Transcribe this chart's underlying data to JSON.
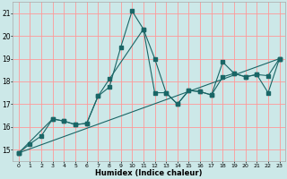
{
  "xlabel": "Humidex (Indice chaleur)",
  "ylabel": "",
  "bg_color": "#cce8e8",
  "grid_color": "#ff9999",
  "line_color": "#1a6666",
  "xlim": [
    -0.5,
    23.5
  ],
  "ylim": [
    14.5,
    21.5
  ],
  "xticks": [
    0,
    1,
    2,
    3,
    4,
    5,
    6,
    7,
    8,
    9,
    10,
    11,
    12,
    13,
    14,
    15,
    16,
    17,
    18,
    19,
    20,
    21,
    22,
    23
  ],
  "yticks": [
    15,
    16,
    17,
    18,
    19,
    20,
    21
  ],
  "line1_x": [
    0,
    1,
    2,
    3,
    4,
    5,
    6,
    7,
    8,
    9,
    10,
    11,
    12,
    13,
    14,
    15,
    16,
    17,
    18,
    19,
    20,
    21,
    22,
    23
  ],
  "line1_y": [
    14.85,
    15.25,
    15.6,
    16.35,
    16.25,
    16.1,
    16.15,
    17.35,
    17.75,
    19.5,
    21.1,
    20.3,
    19.0,
    17.5,
    17.0,
    17.6,
    17.55,
    17.4,
    18.85,
    18.35,
    18.2,
    18.3,
    17.5,
    19.0
  ],
  "line2_x": [
    0,
    3,
    4,
    5,
    6,
    7,
    8,
    11,
    12,
    13,
    14,
    15,
    16,
    17,
    18,
    19,
    20,
    21,
    22,
    23
  ],
  "line2_y": [
    14.85,
    16.35,
    16.25,
    16.1,
    16.15,
    17.35,
    18.1,
    20.3,
    17.5,
    17.5,
    17.0,
    17.6,
    17.55,
    17.4,
    18.2,
    18.35,
    18.2,
    18.3,
    18.25,
    19.0
  ],
  "line3_x": [
    0,
    23
  ],
  "line3_y": [
    14.85,
    19.0
  ]
}
